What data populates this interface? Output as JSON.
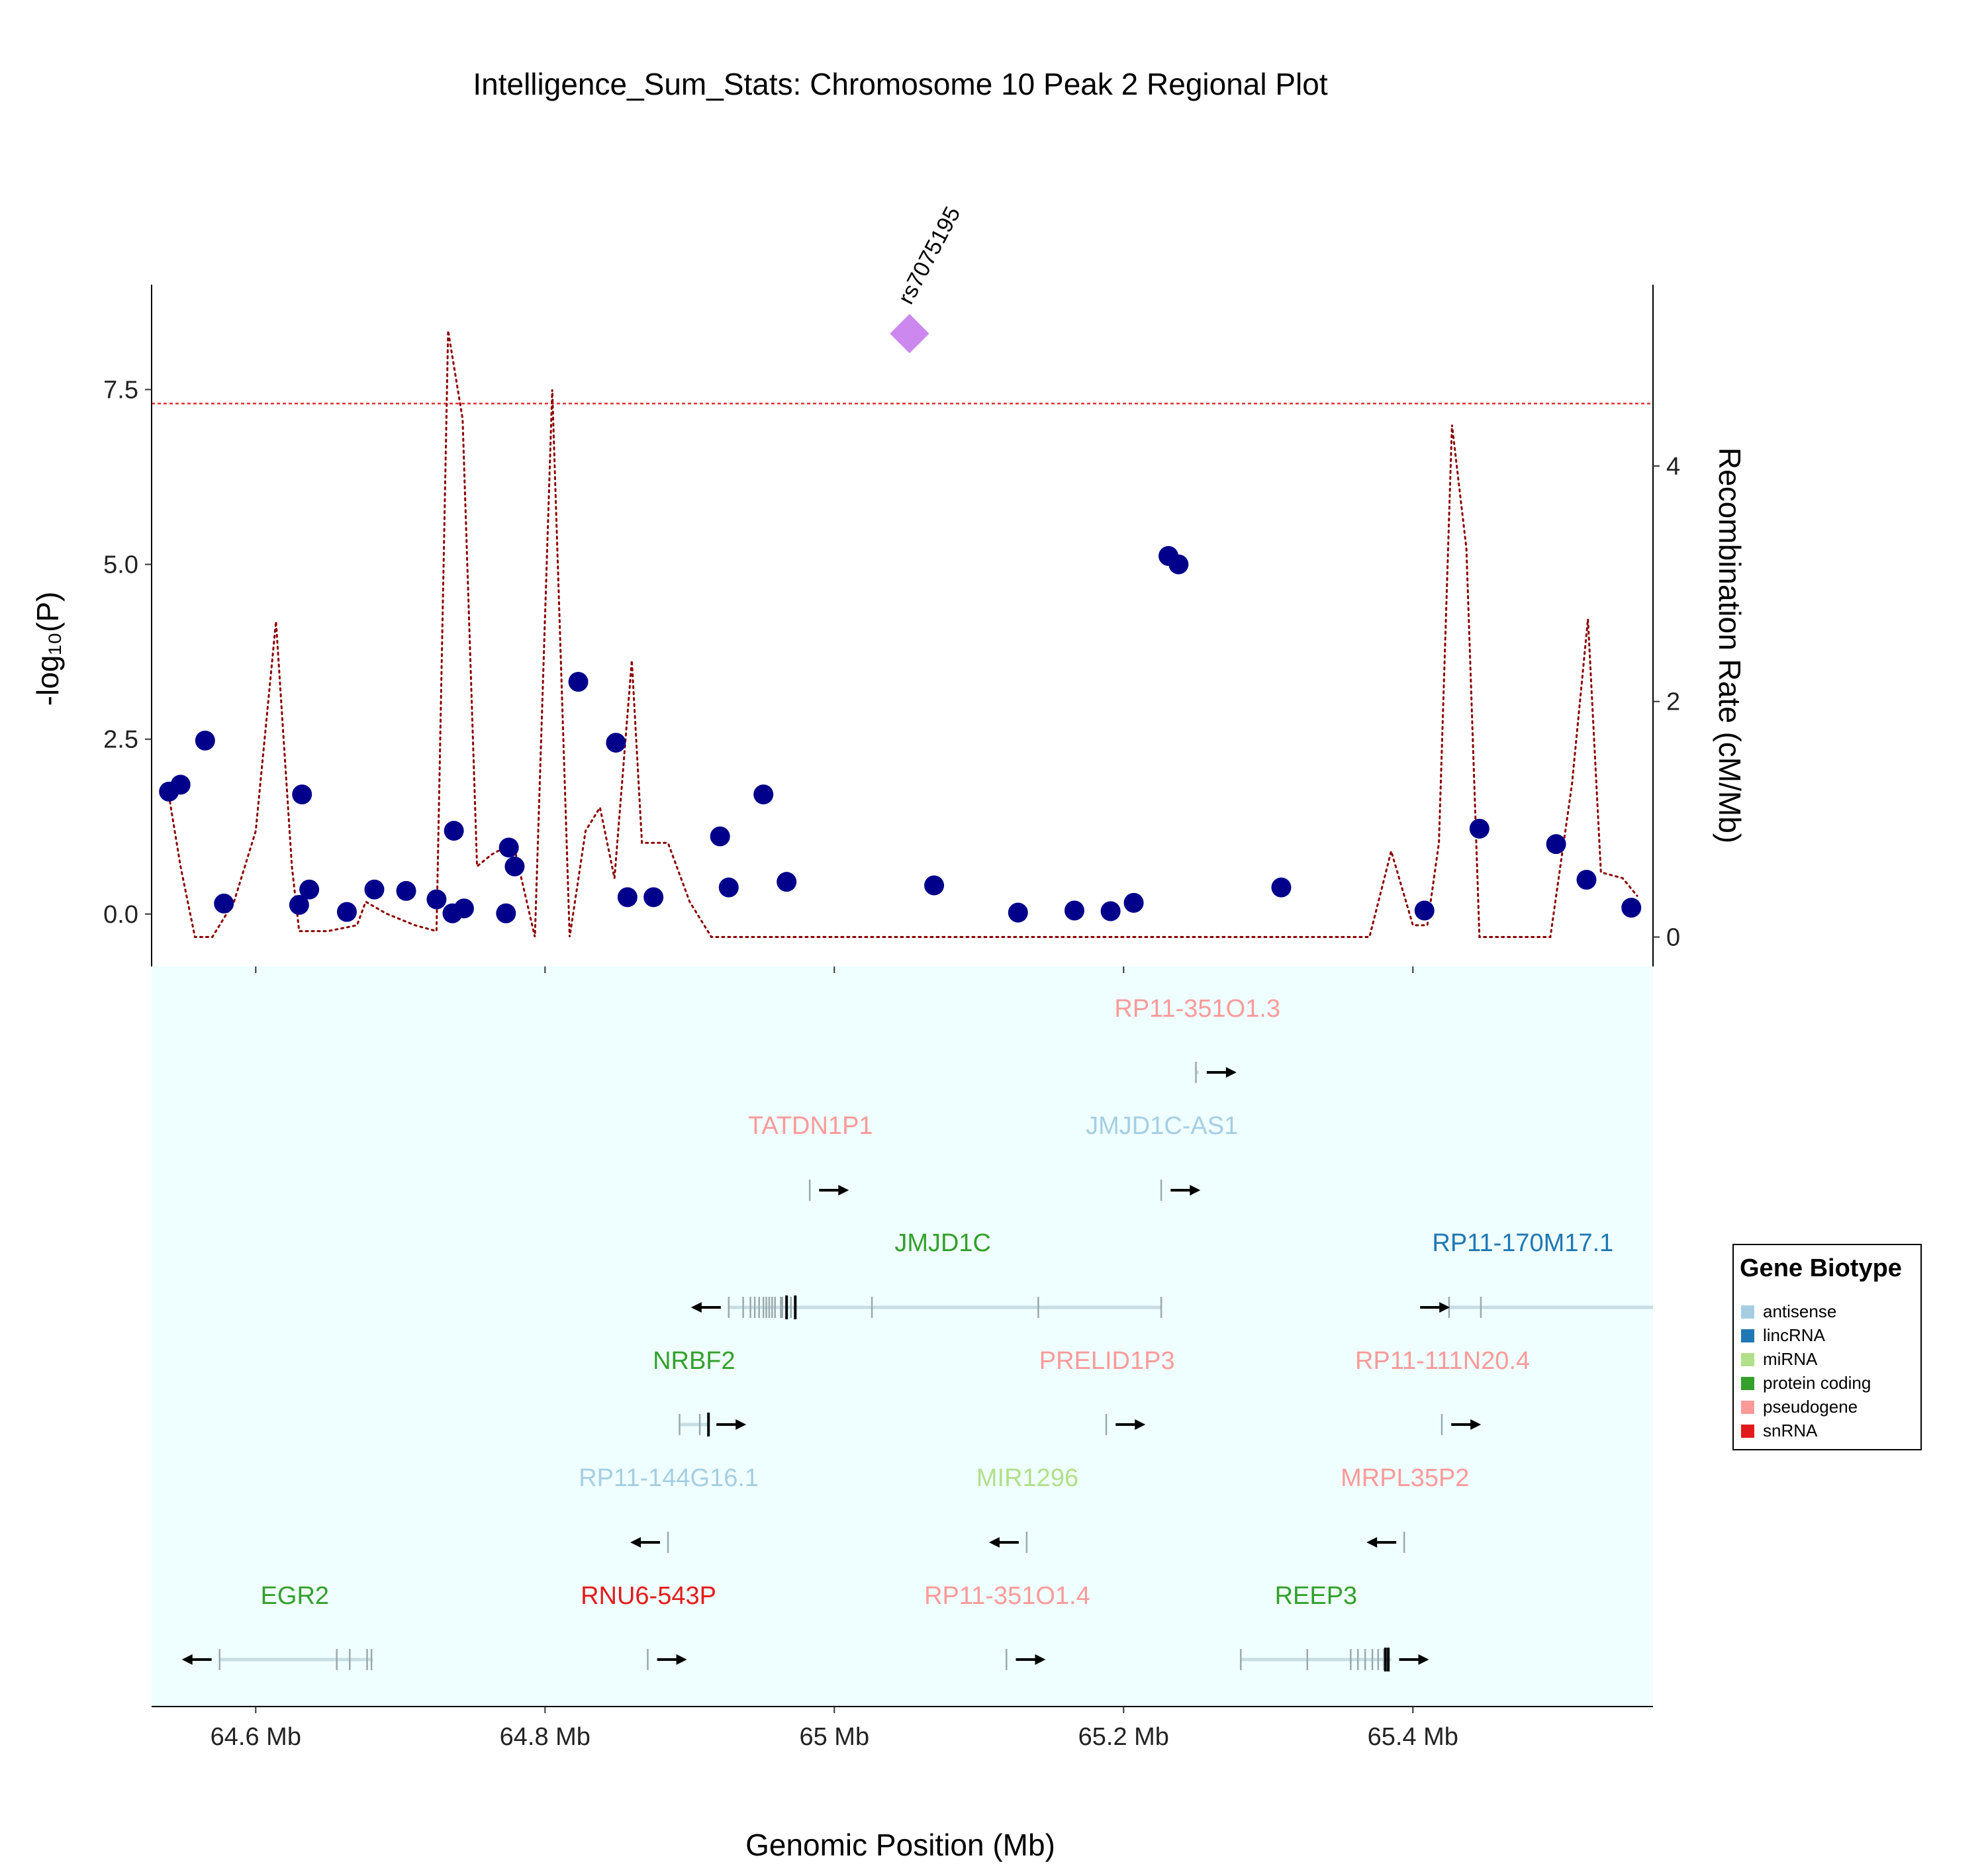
{
  "chart_data": {
    "type": "scatter",
    "title": "Intelligence_Sum_Stats: Chromosome 10 Peak 2 Regional Plot",
    "xlabel": "Genomic Position (Mb)",
    "ylabel": "-log₁₀(P)",
    "y2label": "Recombination Rate (cM/Mb)",
    "xlim": [
      64.528,
      65.566
    ],
    "ylim": [
      -0.75,
      9.0
    ],
    "y2lim": [
      -0.25,
      5.54
    ],
    "x_ticks": [
      64.6,
      64.8,
      65.0,
      65.2,
      65.4
    ],
    "x_tick_labels": [
      "64.6 Mb",
      "64.8 Mb",
      "65 Mb",
      "65.2 Mb",
      "65.4 Mb"
    ],
    "y_ticks": [
      0.0,
      2.5,
      5.0,
      7.5
    ],
    "y_tick_labels": [
      "0.0",
      "2.5",
      "5.0",
      "7.5"
    ],
    "y2_ticks": [
      0,
      2,
      4
    ],
    "y2_tick_labels": [
      "0",
      "2",
      "4"
    ],
    "significance_line": 7.3,
    "lead_snp": {
      "label": "rs7075195",
      "x": 65.052,
      "y": 8.3,
      "color": "#cc88ee"
    },
    "point_color": "#00008b",
    "recomb_color": "#8b0000",
    "sigline_color": "#e03030",
    "panel_color": "#efffff",
    "snps": [
      {
        "x": 64.54,
        "y": 1.75
      },
      {
        "x": 64.548,
        "y": 1.85
      },
      {
        "x": 64.565,
        "y": 2.48
      },
      {
        "x": 64.578,
        "y": 0.15
      },
      {
        "x": 64.63,
        "y": 0.13
      },
      {
        "x": 64.632,
        "y": 1.71
      },
      {
        "x": 64.637,
        "y": 0.35
      },
      {
        "x": 64.663,
        "y": 0.03
      },
      {
        "x": 64.682,
        "y": 0.35
      },
      {
        "x": 64.704,
        "y": 0.33
      },
      {
        "x": 64.725,
        "y": 0.21
      },
      {
        "x": 64.736,
        "y": 0.01
      },
      {
        "x": 64.737,
        "y": 1.19
      },
      {
        "x": 64.744,
        "y": 0.08
      },
      {
        "x": 64.773,
        "y": 0.01
      },
      {
        "x": 64.775,
        "y": 0.95
      },
      {
        "x": 64.779,
        "y": 0.68
      },
      {
        "x": 64.823,
        "y": 3.32
      },
      {
        "x": 64.849,
        "y": 2.45
      },
      {
        "x": 64.857,
        "y": 0.24
      },
      {
        "x": 64.875,
        "y": 0.24
      },
      {
        "x": 64.921,
        "y": 1.11
      },
      {
        "x": 64.927,
        "y": 0.38
      },
      {
        "x": 64.951,
        "y": 1.71
      },
      {
        "x": 64.967,
        "y": 0.46
      },
      {
        "x": 65.069,
        "y": 0.41
      },
      {
        "x": 65.127,
        "y": 0.02
      },
      {
        "x": 65.166,
        "y": 0.05
      },
      {
        "x": 65.191,
        "y": 0.04
      },
      {
        "x": 65.207,
        "y": 0.16
      },
      {
        "x": 65.231,
        "y": 5.12
      },
      {
        "x": 65.238,
        "y": 5.0
      },
      {
        "x": 65.309,
        "y": 0.38
      },
      {
        "x": 65.408,
        "y": 0.05
      },
      {
        "x": 65.446,
        "y": 1.22
      },
      {
        "x": 65.499,
        "y": 1.0
      },
      {
        "x": 65.52,
        "y": 0.49
      },
      {
        "x": 65.551,
        "y": 0.09
      }
    ],
    "recombination": [
      [
        64.54,
        1.2
      ],
      [
        64.548,
        0.6
      ],
      [
        64.558,
        0.0
      ],
      [
        64.57,
        0.0
      ],
      [
        64.585,
        0.3
      ],
      [
        64.6,
        0.9
      ],
      [
        64.614,
        2.68
      ],
      [
        64.625,
        0.6
      ],
      [
        64.63,
        0.05
      ],
      [
        64.65,
        0.05
      ],
      [
        64.67,
        0.1
      ],
      [
        64.676,
        0.3
      ],
      [
        64.69,
        0.2
      ],
      [
        64.71,
        0.1
      ],
      [
        64.725,
        0.05
      ],
      [
        64.733,
        5.15
      ],
      [
        64.743,
        4.4
      ],
      [
        64.753,
        0.6
      ],
      [
        64.763,
        0.7
      ],
      [
        64.778,
        0.8
      ],
      [
        64.793,
        0.0
      ],
      [
        64.805,
        4.65
      ],
      [
        64.817,
        0.0
      ],
      [
        64.828,
        0.9
      ],
      [
        64.838,
        1.1
      ],
      [
        64.848,
        0.5
      ],
      [
        64.86,
        2.35
      ],
      [
        64.867,
        0.8
      ],
      [
        64.885,
        0.8
      ],
      [
        64.9,
        0.3
      ],
      [
        64.915,
        0.0
      ],
      [
        65.37,
        0.0
      ],
      [
        65.385,
        0.73
      ],
      [
        65.4,
        0.1
      ],
      [
        65.41,
        0.1
      ],
      [
        65.418,
        0.8
      ],
      [
        65.427,
        4.35
      ],
      [
        65.437,
        3.3
      ],
      [
        65.446,
        0.0
      ],
      [
        65.495,
        0.0
      ],
      [
        65.51,
        1.3
      ],
      [
        65.521,
        2.7
      ],
      [
        65.53,
        0.55
      ],
      [
        65.545,
        0.5
      ],
      [
        65.555,
        0.35
      ]
    ],
    "genes": [
      {
        "name": "RP11-351O1.3",
        "biotype": "pseudogene",
        "row": 0,
        "start": 65.25,
        "end": 65.252,
        "strand": "+",
        "exons": [
          65.25
        ]
      },
      {
        "name": "TATDN1P1",
        "biotype": "pseudogene",
        "row": 1,
        "start": 64.983,
        "end": 64.984,
        "strand": "+",
        "exons": [
          64.983
        ]
      },
      {
        "name": "JMJD1C-AS1",
        "biotype": "antisense",
        "row": 1,
        "start": 65.226,
        "end": 65.227,
        "strand": "+",
        "exons": [
          65.226
        ]
      },
      {
        "name": "JMJD1C",
        "biotype": "protein coding",
        "row": 2,
        "start": 64.927,
        "end": 65.226,
        "strand": "-",
        "exons": [
          64.927,
          64.937,
          64.942,
          64.945,
          64.948,
          64.951,
          64.953,
          64.955,
          64.957,
          64.959,
          64.963,
          64.964,
          64.967,
          64.97,
          64.973,
          65.026,
          65.141,
          65.226
        ],
        "thick": [
          64.967,
          64.973
        ]
      },
      {
        "name": "RP11-170M17.1",
        "biotype": "lincRNA",
        "row": 2,
        "start": 65.425,
        "end": 65.566,
        "strand": "-",
        "exons": [
          65.425,
          65.447
        ],
        "arrow_dir": "+",
        "arrow_at": 65.405
      },
      {
        "name": "NRBF2",
        "biotype": "protein coding",
        "row": 3,
        "start": 64.893,
        "end": 64.913,
        "strand": "+",
        "exons": [
          64.893,
          64.907,
          64.913
        ],
        "thick": [
          64.913
        ]
      },
      {
        "name": "PRELID1P3",
        "biotype": "pseudogene",
        "row": 3,
        "start": 65.188,
        "end": 65.189,
        "strand": "+",
        "exons": [
          65.188
        ]
      },
      {
        "name": "RP11-111N20.4",
        "biotype": "pseudogene",
        "row": 3,
        "start": 65.42,
        "end": 65.421,
        "strand": "+",
        "exons": [
          65.42
        ]
      },
      {
        "name": "RP11-144G16.1",
        "biotype": "antisense",
        "row": 4,
        "start": 64.885,
        "end": 64.886,
        "strand": "-",
        "exons": [
          64.885
        ]
      },
      {
        "name": "MIR1296",
        "biotype": "miRNA",
        "row": 4,
        "start": 65.133,
        "end": 65.134,
        "strand": "-",
        "exons": [
          65.133
        ]
      },
      {
        "name": "MRPL35P2",
        "biotype": "pseudogene",
        "row": 4,
        "start": 65.394,
        "end": 65.395,
        "strand": "-",
        "exons": [
          65.394
        ]
      },
      {
        "name": "EGR2",
        "biotype": "protein coding",
        "row": 5,
        "start": 64.575,
        "end": 64.681,
        "strand": "-",
        "exons": [
          64.575,
          64.656,
          64.665,
          64.677,
          64.68
        ]
      },
      {
        "name": "RNU6-543P",
        "biotype": "snRNA",
        "row": 5,
        "start": 64.871,
        "end": 64.872,
        "strand": "+",
        "exons": [
          64.871
        ]
      },
      {
        "name": "RP11-351O1.4",
        "biotype": "pseudogene",
        "row": 5,
        "start": 65.119,
        "end": 65.12,
        "strand": "+",
        "exons": [
          65.119
        ]
      },
      {
        "name": "REEP3",
        "biotype": "protein coding",
        "row": 5,
        "start": 65.281,
        "end": 65.385,
        "strand": "+",
        "exons": [
          65.281,
          65.327,
          65.357,
          65.362,
          65.367,
          65.372,
          65.376,
          65.38,
          65.383
        ],
        "thick": [
          65.381,
          65.383
        ]
      }
    ],
    "legend": {
      "title": "Gene Biotype",
      "position": "right",
      "items": [
        {
          "label": "antisense",
          "color": "#a6cee3"
        },
        {
          "label": "lincRNA",
          "color": "#1f78b4"
        },
        {
          "label": "miRNA",
          "color": "#b2df8a"
        },
        {
          "label": "protein coding",
          "color": "#33a02c"
        },
        {
          "label": "pseudogene",
          "color": "#fb9a99"
        },
        {
          "label": "snRNA",
          "color": "#e31a1c"
        }
      ]
    }
  }
}
